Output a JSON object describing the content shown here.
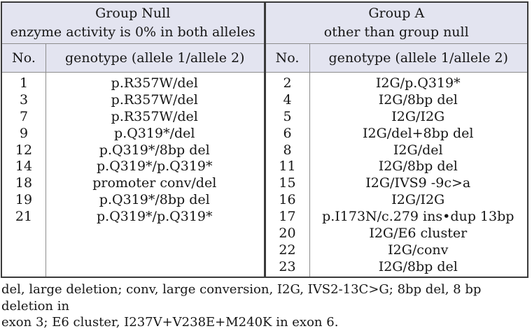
{
  "table": {
    "groups": [
      {
        "title": "Group Null",
        "subtitle": "enzyme activity is 0% in both alleles",
        "col_no": "No.",
        "col_genotype": "genotype (allele 1/allele 2)",
        "rows": [
          {
            "no": "1",
            "genotype": "p.R357W/del"
          },
          {
            "no": "3",
            "genotype": "p.R357W/del"
          },
          {
            "no": "7",
            "genotype": "p.R357W/del"
          },
          {
            "no": "9",
            "genotype": "p.Q319*/del"
          },
          {
            "no": "12",
            "genotype": "p.Q319*/8bp del"
          },
          {
            "no": "14",
            "genotype": "p.Q319*/p.Q319*"
          },
          {
            "no": "18",
            "genotype": "promoter conv/del"
          },
          {
            "no": "19",
            "genotype": "p.Q319*/8bp del"
          },
          {
            "no": "21",
            "genotype": "p.Q319*/p.Q319*"
          }
        ]
      },
      {
        "title": "Group A",
        "subtitle": "other than group null",
        "col_no": "No.",
        "col_genotype": "genotype (allele 1/allele 2)",
        "rows": [
          {
            "no": "2",
            "genotype": "I2G/p.Q319*"
          },
          {
            "no": "4",
            "genotype": "I2G/8bp del"
          },
          {
            "no": "5",
            "genotype": "I2G/I2G"
          },
          {
            "no": "6",
            "genotype": "I2G/del+8bp del"
          },
          {
            "no": "8",
            "genotype": "I2G/del"
          },
          {
            "no": "11",
            "genotype": "I2G/8bp del"
          },
          {
            "no": "15",
            "genotype": "I2G/IVS9 -9c>a"
          },
          {
            "no": "16",
            "genotype": "I2G/I2G"
          },
          {
            "no": "17",
            "genotype": "p.I173N/c.279 ins•dup 13bp"
          },
          {
            "no": "20",
            "genotype": "I2G/E6 cluster"
          },
          {
            "no": "22",
            "genotype": "I2G/conv"
          },
          {
            "no": "23",
            "genotype": "I2G/8bp del"
          }
        ]
      }
    ]
  },
  "footnote": {
    "lines": [
      "del, large deletion; conv, large conversion, I2G, IVS2-13C>G; 8bp del, 8 bp deletion in",
      "exon 3; E6 cluster, I237V+V238E+M240K in exon 6."
    ]
  },
  "colors": {
    "header_bg": "#e3e4f0",
    "border_dark": "#3a3a3a",
    "border_light": "#8d8d8d",
    "text": "#161616"
  }
}
